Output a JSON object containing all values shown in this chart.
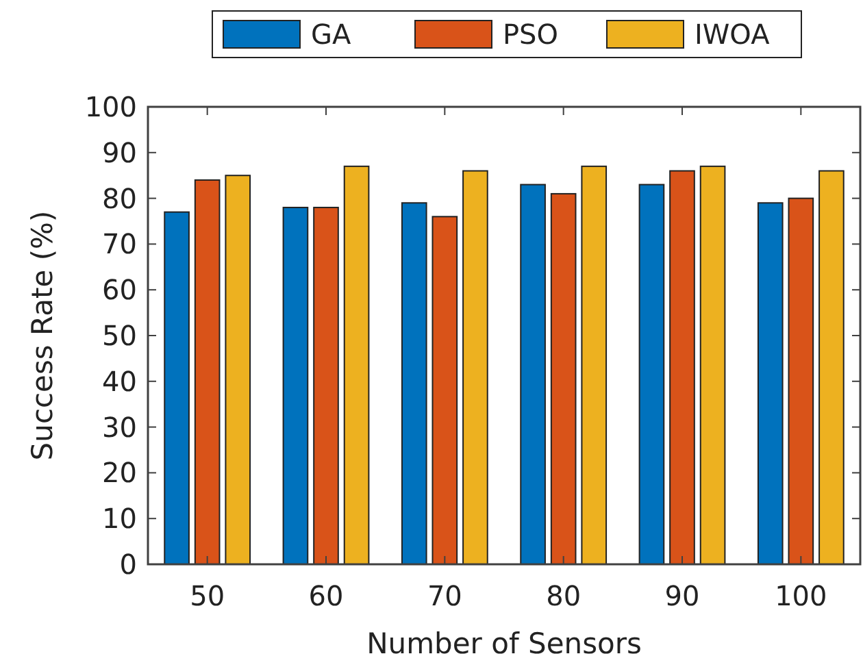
{
  "chart_data": {
    "type": "bar",
    "xlabel": "Number of Sensors",
    "ylabel": "Success Rate (%)",
    "categories": [
      "50",
      "60",
      "70",
      "80",
      "90",
      "100"
    ],
    "series": [
      {
        "name": "GA",
        "color": "#0072bd",
        "values": [
          77,
          78,
          79,
          83,
          83,
          79
        ]
      },
      {
        "name": "PSO",
        "color": "#d95319",
        "values": [
          84,
          78,
          76,
          81,
          86,
          80
        ]
      },
      {
        "name": "IWOA",
        "color": "#edb120",
        "values": [
          85,
          87,
          86,
          87,
          87,
          86
        ]
      }
    ],
    "ylim": [
      0,
      100
    ],
    "yticks": [
      0,
      10,
      20,
      30,
      40,
      50,
      60,
      70,
      80,
      90,
      100
    ],
    "grid": false,
    "legend": "top"
  }
}
